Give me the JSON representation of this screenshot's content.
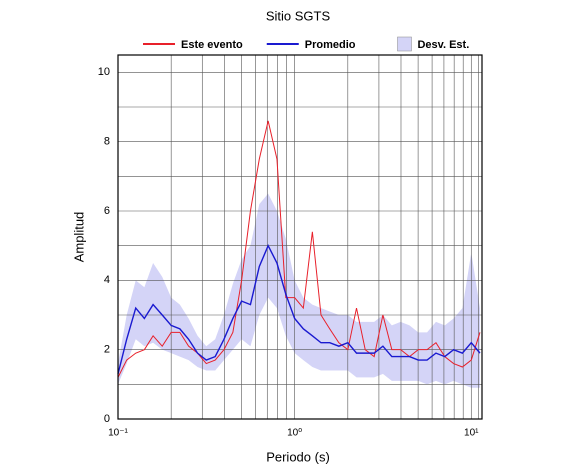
{
  "chart_data": {
    "type": "line",
    "title": "Sitio SGTS",
    "x_label": "Periodo (s)",
    "y_label": "Amplitud",
    "xscale": "log",
    "grid": true,
    "xlim": [
      0.1,
      11.5
    ],
    "ylim": [
      0,
      10.5
    ],
    "xticks": [
      {
        "value": 0.1,
        "label": "10⁻¹"
      },
      {
        "value": 1,
        "label": "10⁰"
      },
      {
        "value": 10,
        "label": "10¹"
      }
    ],
    "xminor_ticks": [
      0.2,
      0.3,
      0.4,
      0.5,
      0.6,
      0.7,
      0.8,
      0.9,
      2,
      3,
      4,
      5,
      6,
      7,
      8,
      9,
      11
    ],
    "yticks": [
      0,
      2,
      4,
      6,
      8,
      10
    ],
    "yminor_ticks": [
      1,
      3,
      5,
      7,
      9
    ],
    "legend": "top",
    "x": [
      0.1,
      0.112,
      0.126,
      0.141,
      0.158,
      0.178,
      0.2,
      0.224,
      0.251,
      0.282,
      0.316,
      0.355,
      0.398,
      0.447,
      0.501,
      0.562,
      0.631,
      0.708,
      0.794,
      0.891,
      1,
      1.12,
      1.26,
      1.41,
      1.58,
      1.78,
      2,
      2.24,
      2.51,
      2.82,
      3.16,
      3.55,
      3.98,
      4.47,
      5.01,
      5.62,
      6.31,
      7.08,
      7.94,
      8.91,
      10,
      11.2
    ],
    "series": [
      {
        "name": "Este evento",
        "color": "#e8202a",
        "values": [
          1.2,
          1.7,
          1.9,
          2.0,
          2.4,
          2.1,
          2.5,
          2.5,
          2.1,
          1.9,
          1.6,
          1.7,
          2.0,
          2.5,
          4.0,
          6.0,
          7.5,
          8.6,
          7.5,
          3.5,
          3.5,
          3.2,
          5.4,
          3.0,
          2.6,
          2.2,
          2.0,
          3.2,
          2.0,
          1.8,
          3.0,
          2.0,
          2.0,
          1.8,
          2.0,
          2.0,
          2.2,
          1.8,
          1.6,
          1.5,
          1.7,
          2.5
        ]
      },
      {
        "name": "Promedio",
        "color": "#1a1ad0",
        "values": [
          1.3,
          2.3,
          3.2,
          2.9,
          3.3,
          3.0,
          2.7,
          2.6,
          2.3,
          1.9,
          1.7,
          1.8,
          2.3,
          2.9,
          3.4,
          3.3,
          4.4,
          5.0,
          4.5,
          3.6,
          2.9,
          2.6,
          2.4,
          2.2,
          2.2,
          2.1,
          2.2,
          1.9,
          1.9,
          1.9,
          2.1,
          1.8,
          1.8,
          1.8,
          1.7,
          1.7,
          1.9,
          1.8,
          2.0,
          1.9,
          2.2,
          1.9
        ]
      },
      {
        "name": "Desv. Est.",
        "color": "#d4d4f7",
        "upper": [
          1.6,
          3.0,
          4.0,
          3.8,
          4.5,
          4.1,
          3.5,
          3.3,
          2.9,
          2.4,
          2.1,
          2.3,
          3.0,
          3.9,
          4.6,
          5.0,
          6.2,
          6.5,
          6.0,
          5.2,
          4.0,
          3.5,
          3.3,
          3.2,
          3.1,
          3.0,
          3.0,
          2.8,
          2.8,
          2.8,
          3.0,
          2.7,
          2.8,
          2.7,
          2.5,
          2.5,
          2.8,
          2.7,
          2.9,
          3.2,
          4.8,
          3.2
        ],
        "lower": [
          1.0,
          1.6,
          2.3,
          2.1,
          2.2,
          2.0,
          1.9,
          1.8,
          1.7,
          1.5,
          1.4,
          1.4,
          1.7,
          2.0,
          2.3,
          2.1,
          3.0,
          3.5,
          3.2,
          2.4,
          1.9,
          1.7,
          1.5,
          1.4,
          1.4,
          1.4,
          1.4,
          1.2,
          1.2,
          1.2,
          1.3,
          1.1,
          1.1,
          1.1,
          1.1,
          1.0,
          1.1,
          1.0,
          1.1,
          1.0,
          0.9,
          0.9
        ]
      }
    ]
  }
}
